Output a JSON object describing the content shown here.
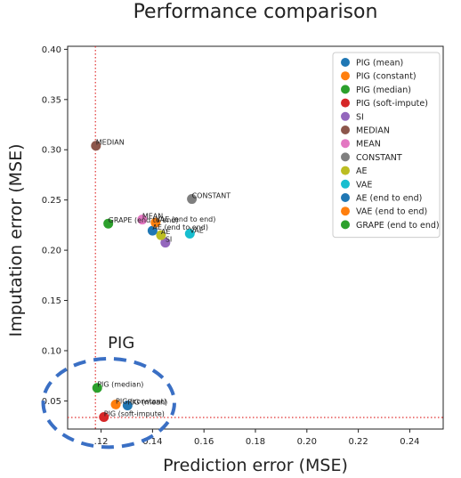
{
  "chart_data": {
    "type": "scatter",
    "title": "Performance comparison",
    "xlabel": "Prediction error (MSE)",
    "ylabel": "Imputation error (MSE)",
    "xlim": [
      0.107,
      0.253
    ],
    "ylim": [
      0.022,
      0.403
    ],
    "xticks": [
      0.12,
      0.14,
      0.16,
      0.18,
      0.2,
      0.22,
      0.24
    ],
    "xtick_labels": [
      ".12",
      "0.14",
      "0.16",
      "0.18",
      "0.20",
      "0.22",
      "0.24"
    ],
    "yticks": [
      0.05,
      0.1,
      0.15,
      0.2,
      0.25,
      0.3,
      0.35,
      0.4
    ],
    "ytick_labels": [
      "0.05",
      "0.10",
      "0.15",
      "0.20",
      "0.25",
      "0.30",
      "0.35",
      "0.40"
    ],
    "grid": false,
    "legend_position": "top-right",
    "reference_lines": {
      "x": 0.1178,
      "y": 0.0335,
      "color": "#e03030",
      "style": "dotted"
    },
    "highlight": {
      "label": "PIG",
      "center": [
        0.123,
        0.048
      ],
      "radius_x": 0.0255,
      "radius_y": 0.044,
      "color": "#3a6fc4"
    },
    "series": [
      {
        "name": "PIG (mean)",
        "color": "#1f77b4",
        "label": "PIG (mean)",
        "x": 0.1303,
        "y": 0.0455
      },
      {
        "name": "PIG (constant)",
        "color": "#ff7f0e",
        "label": "PIG (constant)",
        "x": 0.1257,
        "y": 0.0465
      },
      {
        "name": "PIG (median)",
        "color": "#2ca02c",
        "label": "PIG (median)",
        "x": 0.1185,
        "y": 0.063
      },
      {
        "name": "PIG (soft-impute)",
        "color": "#d62728",
        "label": "PIG (soft-impute)",
        "x": 0.1211,
        "y": 0.034
      },
      {
        "name": "SI",
        "color": "#9467bd",
        "label": "SI",
        "x": 0.145,
        "y": 0.2075
      },
      {
        "name": "MEDIAN",
        "color": "#8c564b",
        "label": "MEDIAN",
        "x": 0.118,
        "y": 0.304
      },
      {
        "name": "MEAN",
        "color": "#e377c2",
        "label": "MEAN",
        "x": 0.136,
        "y": 0.2305
      },
      {
        "name": "CONSTANT",
        "color": "#7f7f7f",
        "label": "CONSTANT",
        "x": 0.1553,
        "y": 0.251
      },
      {
        "name": "AE",
        "color": "#bcbd22",
        "label": "AE",
        "x": 0.1433,
        "y": 0.215
      },
      {
        "name": "VAE",
        "color": "#17becf",
        "label": "VAE",
        "x": 0.1545,
        "y": 0.2165
      },
      {
        "name": "AE (end to end)",
        "color": "#1f77b4",
        "label": "AE (end to end)",
        "x": 0.14,
        "y": 0.2195
      },
      {
        "name": "VAE (end to end)",
        "color": "#ff7f0e",
        "label": "VAE (end to end)",
        "x": 0.1412,
        "y": 0.2275
      },
      {
        "name": "GRAPE (end to end)",
        "color": "#2ca02c",
        "label": "GRAPE (end to end)",
        "x": 0.1228,
        "y": 0.2265
      }
    ]
  }
}
